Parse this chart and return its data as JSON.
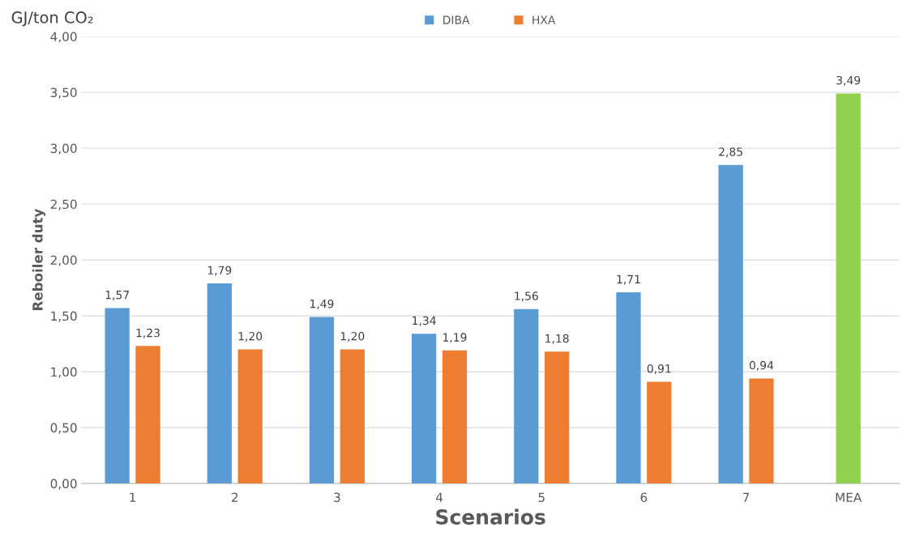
{
  "chart_data": {
    "type": "bar",
    "xlabel": "Scenarios",
    "ylabel": "Reboiler duty",
    "annotations": [
      "GJ/ton CO₂"
    ],
    "categories": [
      "1",
      "2",
      "3",
      "4",
      "5",
      "6",
      "7",
      "MEA"
    ],
    "series": [
      {
        "name": "DIBA",
        "color": "#5b9bd5",
        "values": [
          1.57,
          1.79,
          1.49,
          1.34,
          1.56,
          1.71,
          2.85,
          null
        ],
        "value_labels": [
          "1,57",
          "1,79",
          "1,49",
          "1,34",
          "1,56",
          "1,71",
          "2,85",
          null
        ]
      },
      {
        "name": "HXA",
        "color": "#ed7d31",
        "values": [
          1.23,
          1.2,
          1.2,
          1.19,
          1.18,
          0.91,
          0.94,
          null
        ],
        "value_labels": [
          "1,23",
          "1,20",
          "1,20",
          "1,19",
          "1,18",
          "0,91",
          "0,94",
          null
        ]
      },
      {
        "color": "#92d050",
        "values": [
          null,
          null,
          null,
          null,
          null,
          null,
          null,
          3.49
        ],
        "value_labels": [
          null,
          null,
          null,
          null,
          null,
          null,
          null,
          "3,49"
        ]
      }
    ],
    "ylim": [
      0,
      4
    ],
    "yticks": [
      {
        "value": 0,
        "label": "0,00"
      },
      {
        "value": 0.5,
        "label": "0,50"
      },
      {
        "value": 1,
        "label": "1,00"
      },
      {
        "value": 1.5,
        "label": "1,50"
      },
      {
        "value": 2,
        "label": "2,00"
      },
      {
        "value": 2.5,
        "label": "2,50"
      },
      {
        "value": 3,
        "label": "3,00"
      },
      {
        "value": 3.5,
        "label": "3,50"
      },
      {
        "value": 4,
        "label": "4,00"
      }
    ],
    "grid": "y",
    "legend": "top"
  }
}
